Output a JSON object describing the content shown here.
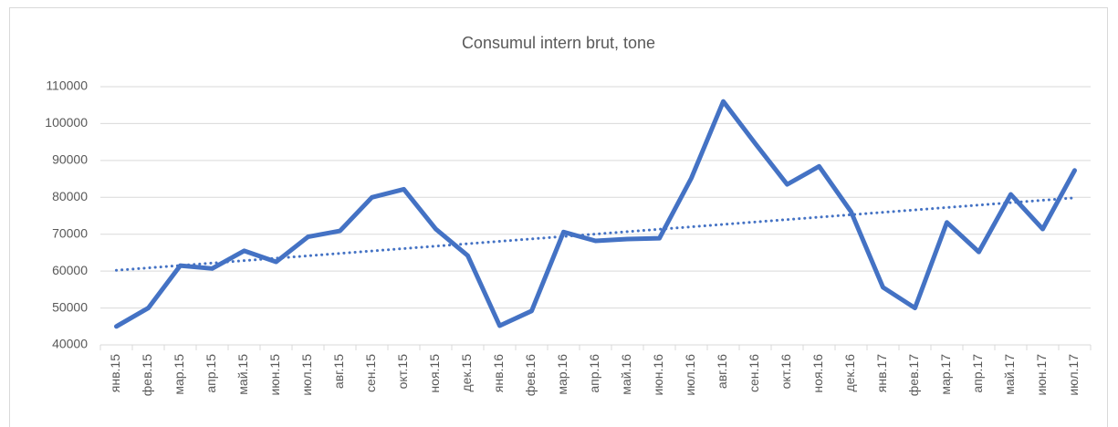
{
  "chart_data": {
    "type": "line",
    "title": "Consumul intern brut, tone",
    "categories": [
      "янв.15",
      "фев.15",
      "мар.15",
      "апр.15",
      "май.15",
      "июн.15",
      "июл.15",
      "авг.15",
      "сен.15",
      "окт.15",
      "ноя.15",
      "дек.15",
      "янв.16",
      "фев.16",
      "мар.16",
      "апр.16",
      "май.16",
      "июн.16",
      "июл.16",
      "авг.16",
      "сен.16",
      "окт.16",
      "ноя.16",
      "дек.16",
      "янв.17",
      "фев.17",
      "мар.17",
      "апр.17",
      "май.17",
      "июн.17",
      "июл.17"
    ],
    "values": [
      45000,
      50000,
      61500,
      60700,
      65500,
      62500,
      69300,
      70900,
      80000,
      82200,
      71400,
      64200,
      45200,
      49200,
      70600,
      68200,
      68700,
      68900,
      85200,
      106000,
      94600,
      83500,
      88400,
      76100,
      55600,
      50000,
      73200,
      65200,
      80800,
      71400,
      87300
    ],
    "color": "#4472c4",
    "trendline": true,
    "ylim": [
      40000,
      110000
    ],
    "yticks": [
      40000,
      50000,
      60000,
      70000,
      80000,
      90000,
      100000,
      110000
    ],
    "grid": true
  }
}
